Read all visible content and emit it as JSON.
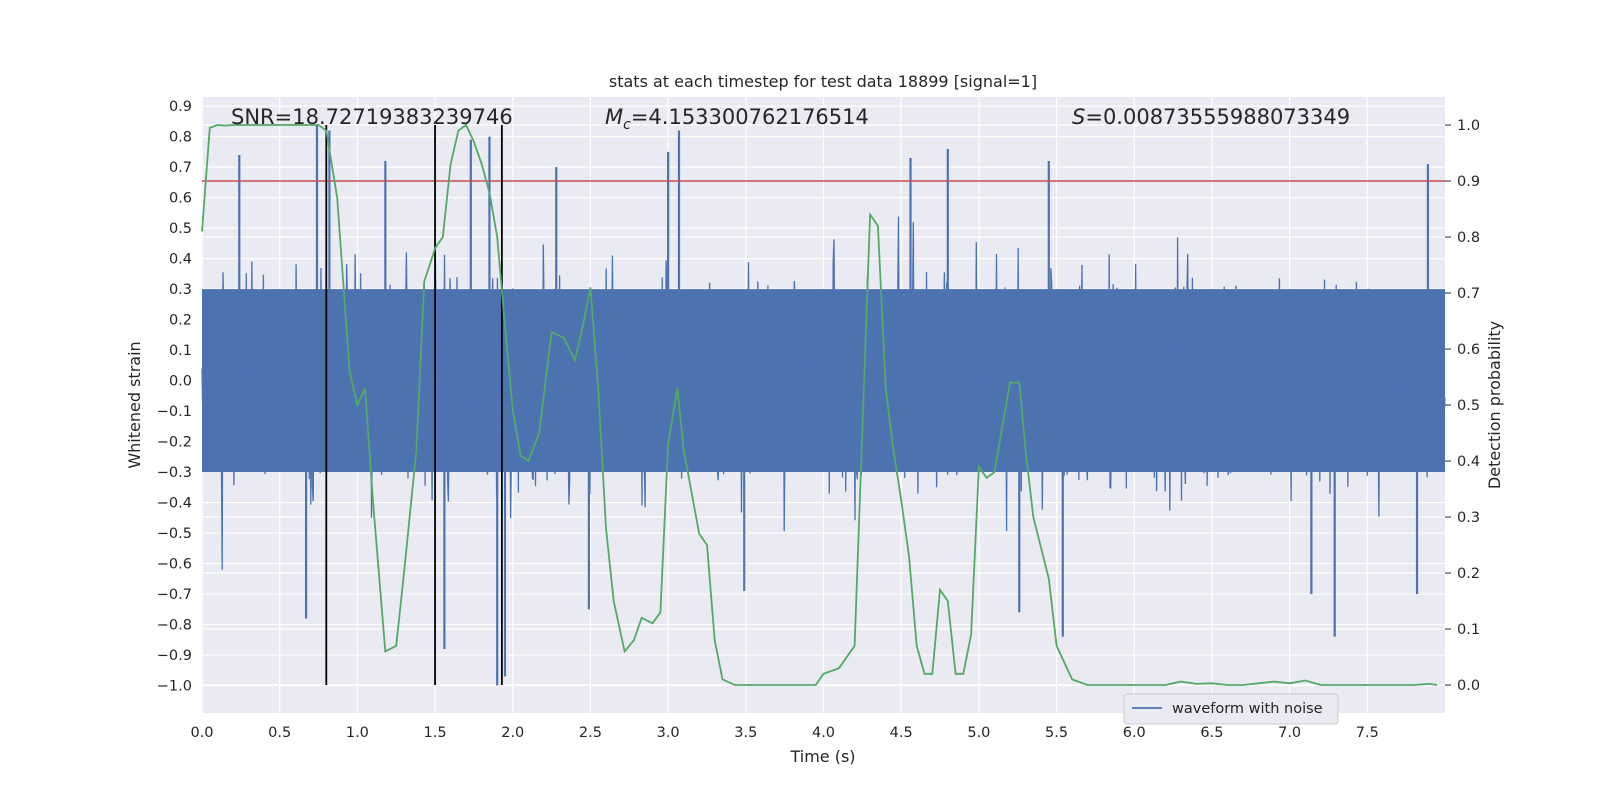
{
  "chart_data": {
    "type": "line",
    "title": "stats at each timestep for test data 18899 [signal=1]",
    "xlabel": "Time (s)",
    "ylabel_left": "Whitened strain",
    "ylabel_right": "Detection probability",
    "xlim": [
      0.0,
      8.0
    ],
    "ylim_left": [
      -1.09,
      0.93
    ],
    "ylim_right": [
      -0.05,
      1.05
    ],
    "x_ticks": [
      "0.0",
      "0.5",
      "1.0",
      "1.5",
      "2.0",
      "2.5",
      "3.0",
      "3.5",
      "4.0",
      "4.5",
      "5.0",
      "5.5",
      "6.0",
      "6.5",
      "7.0",
      "7.5"
    ],
    "y_left_ticks": [
      "0.9",
      "0.8",
      "0.7",
      "0.6",
      "0.5",
      "0.4",
      "0.3",
      "0.2",
      "0.1",
      "0.0",
      "−0.1",
      "−0.2",
      "−0.3",
      "−0.4",
      "−0.5",
      "−0.6",
      "−0.7",
      "−0.8",
      "−0.9",
      "−1.0"
    ],
    "y_right_ticks": [
      "1.0",
      "0.9",
      "0.8",
      "0.7",
      "0.6",
      "0.5",
      "0.4",
      "0.3",
      "0.2",
      "0.1",
      "0.0"
    ],
    "annotations": {
      "snr": "SNR=18.72719383239746",
      "mc_symbol": "M",
      "mc_sub": "c",
      "mc_value": "=4.153300762176514",
      "s_symbol": "S",
      "s_value": "=0.00873555988073349"
    },
    "threshold": {
      "value": 0.9,
      "color": "#c44e52"
    },
    "vertical_lines_x": [
      0.8,
      1.5,
      1.93
    ],
    "waveform": {
      "name": "waveform with noise",
      "color": "#4c72b0",
      "sample_rate_hz": 2048,
      "duration_s": 8.0,
      "core_band": [
        -0.3,
        0.3
      ],
      "spikes": [
        {
          "x": 0.24,
          "y": 0.74
        },
        {
          "x": 0.74,
          "y": 0.84
        },
        {
          "x": 0.82,
          "y": 0.82
        },
        {
          "x": 1.18,
          "y": 0.72
        },
        {
          "x": 1.73,
          "y": 0.79
        },
        {
          "x": 1.85,
          "y": 0.8
        },
        {
          "x": 2.28,
          "y": 0.7
        },
        {
          "x": 3.07,
          "y": 0.82
        },
        {
          "x": 3.0,
          "y": 0.75
        },
        {
          "x": 4.56,
          "y": 0.73
        },
        {
          "x": 4.8,
          "y": 0.76
        },
        {
          "x": 5.45,
          "y": 0.72
        },
        {
          "x": 7.89,
          "y": 0.71
        },
        {
          "x": 0.67,
          "y": -0.78
        },
        {
          "x": 1.56,
          "y": -0.88
        },
        {
          "x": 1.9,
          "y": -1.0
        },
        {
          "x": 1.95,
          "y": -0.97
        },
        {
          "x": 2.49,
          "y": -0.75
        },
        {
          "x": 3.49,
          "y": -0.69
        },
        {
          "x": 5.26,
          "y": -0.76
        },
        {
          "x": 5.54,
          "y": -0.84
        },
        {
          "x": 7.29,
          "y": -0.84
        },
        {
          "x": 7.14,
          "y": -0.7
        },
        {
          "x": 7.82,
          "y": -0.7
        }
      ]
    },
    "detection_probability": {
      "name": "detection probability",
      "color": "#55a868",
      "x": [
        0.0,
        0.05,
        0.1,
        0.15,
        0.2,
        0.3,
        0.4,
        0.5,
        0.6,
        0.7,
        0.75,
        0.8,
        0.87,
        0.95,
        1.0,
        1.05,
        1.1,
        1.18,
        1.25,
        1.3,
        1.38,
        1.43,
        1.5,
        1.55,
        1.6,
        1.65,
        1.7,
        1.75,
        1.8,
        1.85,
        1.9,
        1.95,
        2.0,
        2.05,
        2.1,
        2.17,
        2.25,
        2.33,
        2.4,
        2.45,
        2.5,
        2.55,
        2.6,
        2.65,
        2.72,
        2.78,
        2.83,
        2.9,
        2.95,
        3.0,
        3.06,
        3.1,
        3.16,
        3.2,
        3.25,
        3.3,
        3.35,
        3.43,
        3.5,
        3.6,
        3.7,
        3.8,
        3.9,
        3.95,
        4.0,
        4.1,
        4.2,
        4.3,
        4.35,
        4.4,
        4.45,
        4.5,
        4.55,
        4.6,
        4.65,
        4.7,
        4.75,
        4.8,
        4.85,
        4.9,
        4.95,
        5.0,
        5.05,
        5.1,
        5.2,
        5.26,
        5.3,
        5.35,
        5.45,
        5.5,
        5.6,
        5.7,
        5.8,
        5.9,
        6.0,
        6.1,
        6.2,
        6.3,
        6.4,
        6.5,
        6.6,
        6.7,
        6.8,
        6.9,
        7.0,
        7.1,
        7.2,
        7.3,
        7.4,
        7.5,
        7.6,
        7.7,
        7.8,
        7.9,
        7.95
      ],
      "y": [
        0.81,
        0.995,
        1.0,
        0.999,
        1.0,
        1.0,
        1.0,
        1.0,
        1.0,
        1.0,
        1.0,
        0.99,
        0.87,
        0.56,
        0.5,
        0.53,
        0.33,
        0.06,
        0.07,
        0.2,
        0.42,
        0.72,
        0.78,
        0.8,
        0.93,
        0.99,
        1.0,
        0.97,
        0.93,
        0.88,
        0.8,
        0.64,
        0.49,
        0.41,
        0.4,
        0.45,
        0.63,
        0.62,
        0.58,
        0.64,
        0.71,
        0.53,
        0.28,
        0.15,
        0.06,
        0.08,
        0.12,
        0.11,
        0.13,
        0.43,
        0.53,
        0.42,
        0.33,
        0.27,
        0.25,
        0.08,
        0.01,
        0.0,
        0.0,
        0.0,
        0.0,
        0.0,
        0.0,
        0.0,
        0.02,
        0.03,
        0.07,
        0.84,
        0.82,
        0.53,
        0.42,
        0.33,
        0.23,
        0.07,
        0.02,
        0.02,
        0.17,
        0.15,
        0.02,
        0.02,
        0.09,
        0.39,
        0.37,
        0.38,
        0.54,
        0.54,
        0.42,
        0.3,
        0.19,
        0.07,
        0.01,
        0.0,
        0.0,
        0.0,
        0.0,
        0.0,
        0.0,
        0.006,
        0.002,
        0.003,
        0.0,
        0.0,
        0.003,
        0.006,
        0.003,
        0.008,
        0.0,
        0.0,
        0.0,
        0.0,
        0.0,
        0.0,
        0.0,
        0.002,
        0.0
      ]
    },
    "legend": {
      "label": "waveform with noise",
      "placement": "lower-right"
    }
  }
}
